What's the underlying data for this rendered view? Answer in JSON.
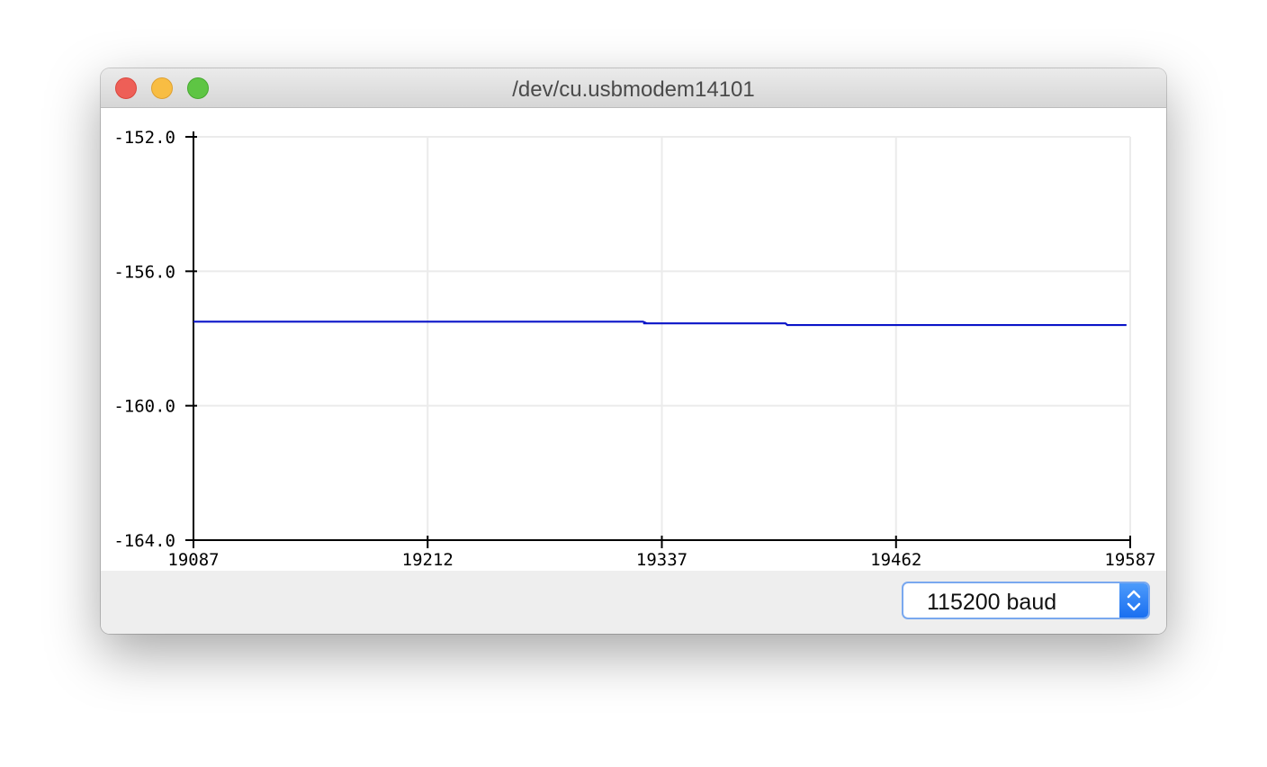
{
  "window": {
    "title": "/dev/cu.usbmodem14101"
  },
  "baud": {
    "selected": "115200 baud"
  },
  "icons": {
    "close": "close-button-icon",
    "minimize": "minimize-button-icon",
    "zoom": "zoom-button-icon",
    "stepper": "chevron-up-down-icon"
  },
  "colors": {
    "series": "#0a14c8",
    "grid": "#ebebeb"
  },
  "chart_data": {
    "type": "line",
    "xlim": [
      19087,
      19587
    ],
    "ylim": [
      -164.0,
      -152.0
    ],
    "xticks": [
      "19087",
      "19212",
      "19337",
      "19462",
      "19587"
    ],
    "yticks": [
      "-152.0",
      "-156.0",
      "-160.0",
      "-164.0"
    ],
    "grid": true,
    "series": [
      {
        "x": [
          19087,
          19327,
          19329,
          19327.5,
          19328.5,
          19329,
          19403,
          19404,
          19405,
          19585
        ],
        "y": [
          -157.5,
          -157.5,
          -157.55,
          -157.55,
          -157.55,
          -157.55,
          -157.55,
          -157.6,
          -157.6,
          -157.6
        ]
      }
    ]
  }
}
